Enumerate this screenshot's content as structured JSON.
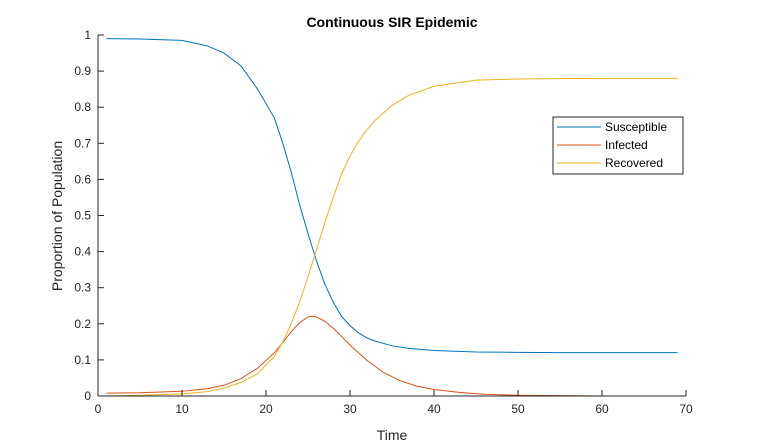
{
  "chart_data": {
    "type": "line",
    "title": "Continuous SIR Epidemic",
    "xlabel": "Time",
    "ylabel": "Proportion of Population",
    "xlim": [
      0,
      70
    ],
    "ylim": [
      0,
      1
    ],
    "xticks": [
      0,
      10,
      20,
      30,
      40,
      50,
      60,
      70
    ],
    "yticks": [
      0,
      0.1,
      0.2,
      0.3,
      0.4,
      0.5,
      0.6,
      0.7,
      0.8,
      0.9,
      1
    ],
    "ytick_labels": [
      "0",
      "0.1",
      "0.2",
      "0.3",
      "0.4",
      "0.5",
      "0.6",
      "0.7",
      "0.8",
      "0.9",
      "1"
    ],
    "grid": false,
    "legend_position": "top-right",
    "series": [
      {
        "name": "Susceptible",
        "color": "#0072BD",
        "x": [
          1,
          5,
          10,
          13,
          15,
          17,
          19,
          21,
          22,
          23,
          24,
          25,
          26,
          27,
          28,
          29,
          30,
          31,
          32,
          33,
          35,
          37,
          40,
          45,
          50,
          55,
          60,
          65,
          69
        ],
        "y": [
          0.99,
          0.989,
          0.985,
          0.97,
          0.95,
          0.915,
          0.85,
          0.77,
          0.7,
          0.62,
          0.53,
          0.45,
          0.375,
          0.31,
          0.26,
          0.22,
          0.195,
          0.175,
          0.161,
          0.152,
          0.139,
          0.132,
          0.126,
          0.122,
          0.121,
          0.12,
          0.12,
          0.12,
          0.12
        ]
      },
      {
        "name": "Infected",
        "color": "#D95319",
        "x": [
          1,
          5,
          10,
          13,
          15,
          17,
          19,
          21,
          22,
          23,
          24,
          25,
          25.5,
          26,
          27,
          28,
          29,
          30,
          32,
          34,
          36,
          38,
          40,
          43,
          46,
          50,
          55,
          60,
          65,
          69
        ],
        "y": [
          0.008,
          0.009,
          0.013,
          0.02,
          0.03,
          0.048,
          0.077,
          0.12,
          0.148,
          0.178,
          0.203,
          0.219,
          0.221,
          0.219,
          0.207,
          0.188,
          0.165,
          0.141,
          0.099,
          0.065,
          0.042,
          0.027,
          0.018,
          0.01,
          0.005,
          0.002,
          0.001,
          0,
          0,
          0
        ]
      },
      {
        "name": "Recovered",
        "color": "#EDB120",
        "x": [
          1,
          5,
          10,
          13,
          15,
          17,
          19,
          21,
          22,
          23,
          24,
          25,
          26,
          27,
          28,
          29,
          30,
          31,
          32,
          33,
          35,
          37,
          40,
          45,
          50,
          55,
          60,
          65,
          69
        ],
        "y": [
          0.0,
          0.002,
          0.006,
          0.012,
          0.022,
          0.037,
          0.062,
          0.11,
          0.15,
          0.2,
          0.26,
          0.33,
          0.405,
          0.48,
          0.55,
          0.615,
          0.665,
          0.705,
          0.737,
          0.764,
          0.805,
          0.833,
          0.858,
          0.875,
          0.878,
          0.879,
          0.88,
          0.88,
          0.88
        ]
      }
    ]
  }
}
